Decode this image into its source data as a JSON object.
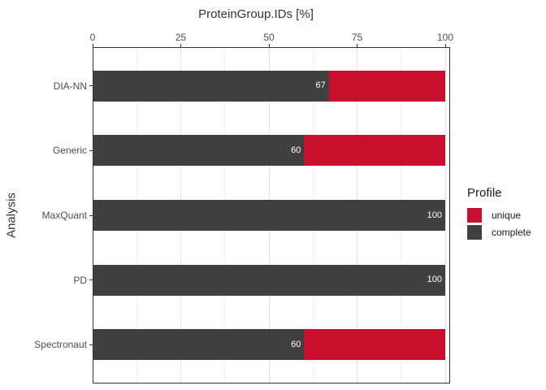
{
  "chart_data": {
    "type": "bar",
    "orientation": "horizontal",
    "stacked": true,
    "title": "ProteinGroup.IDs [%]",
    "xlabel": "ProteinGroup.IDs [%]",
    "ylabel": "Analysis",
    "x_axis_position": "top",
    "xlim": [
      0,
      100
    ],
    "x_breaks": [
      0,
      25,
      50,
      75,
      100
    ],
    "x_minor_breaks": [
      12.5,
      37.5,
      62.5,
      87.5
    ],
    "categories": [
      "DIA-NN",
      "Generic",
      "MaxQuant",
      "PD",
      "Spectronaut"
    ],
    "series": [
      {
        "name": "complete",
        "color": "#404040",
        "values": [
          67,
          60,
          100,
          100,
          60
        ]
      },
      {
        "name": "unique",
        "color": "#C8102E",
        "values": [
          33,
          40,
          0,
          0,
          40
        ]
      }
    ],
    "bar_labels": [
      "67",
      "60",
      "100",
      "100",
      "60"
    ],
    "bar_label_color": "#FFFFFF",
    "grid": {
      "major_color": "#E2E2E2",
      "minor_color": "#EFEFEF",
      "horizontal": false
    },
    "panel_border_color": "#333333",
    "legend_position": "right"
  },
  "legend": {
    "title": "Profile",
    "items": [
      {
        "label": "unique",
        "color": "#C8102E"
      },
      {
        "label": "complete",
        "color": "#404040"
      }
    ]
  }
}
